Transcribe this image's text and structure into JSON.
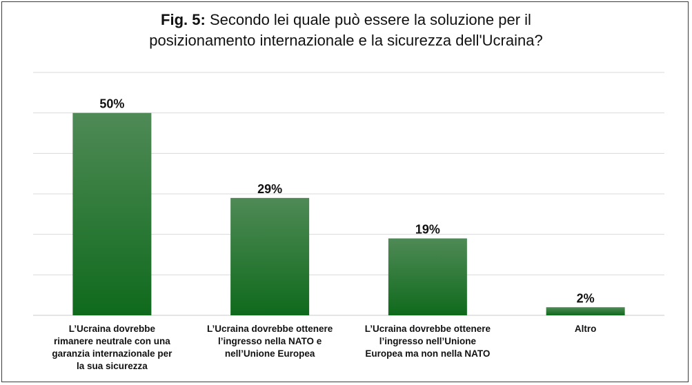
{
  "title": {
    "prefix": "Fig. 5:",
    "line1": "Secondo lei quale può essere la soluzione per il",
    "line2": "posizionamento internazionale e la sicurezza dell'Ucraina?"
  },
  "colors": {
    "bar_top": "#4f8a56",
    "bar_bottom": "#0f6a1c",
    "grid": "#d9d9d9"
  },
  "chart_data": {
    "type": "bar",
    "title": "Fig. 5: Secondo lei quale può essere la soluzione per il posizionamento internazionale e la sicurezza dell'Ucraina?",
    "categories": [
      "L’Ucraina dovrebbe rimanere neutrale con una garanzia internazionale per la sua sicurezza",
      "L’Ucraina dovrebbe ottenere l’ingresso nella NATO e nell’Unione Europea",
      "L’Ucraina dovrebbe ottenere l’ingresso nell’Unione Europea ma non nella NATO",
      "Altro"
    ],
    "category_lines": [
      [
        "L’Ucraina dovrebbe",
        "rimanere neutrale con una",
        "garanzia internazionale per",
        "la sua sicurezza"
      ],
      [
        "L’Ucraina dovrebbe ottenere",
        "l’ingresso nella NATO e",
        "nell’Unione Europea"
      ],
      [
        "L’Ucraina dovrebbe ottenere",
        "l’ingresso nell’Unione",
        "Europea ma non nella NATO"
      ],
      [
        "Altro"
      ]
    ],
    "values": [
      50,
      29,
      19,
      2
    ],
    "data_labels": [
      "50%",
      "29%",
      "19%",
      "2%"
    ],
    "ylim": [
      0,
      60
    ],
    "grid": true,
    "legend": false
  }
}
